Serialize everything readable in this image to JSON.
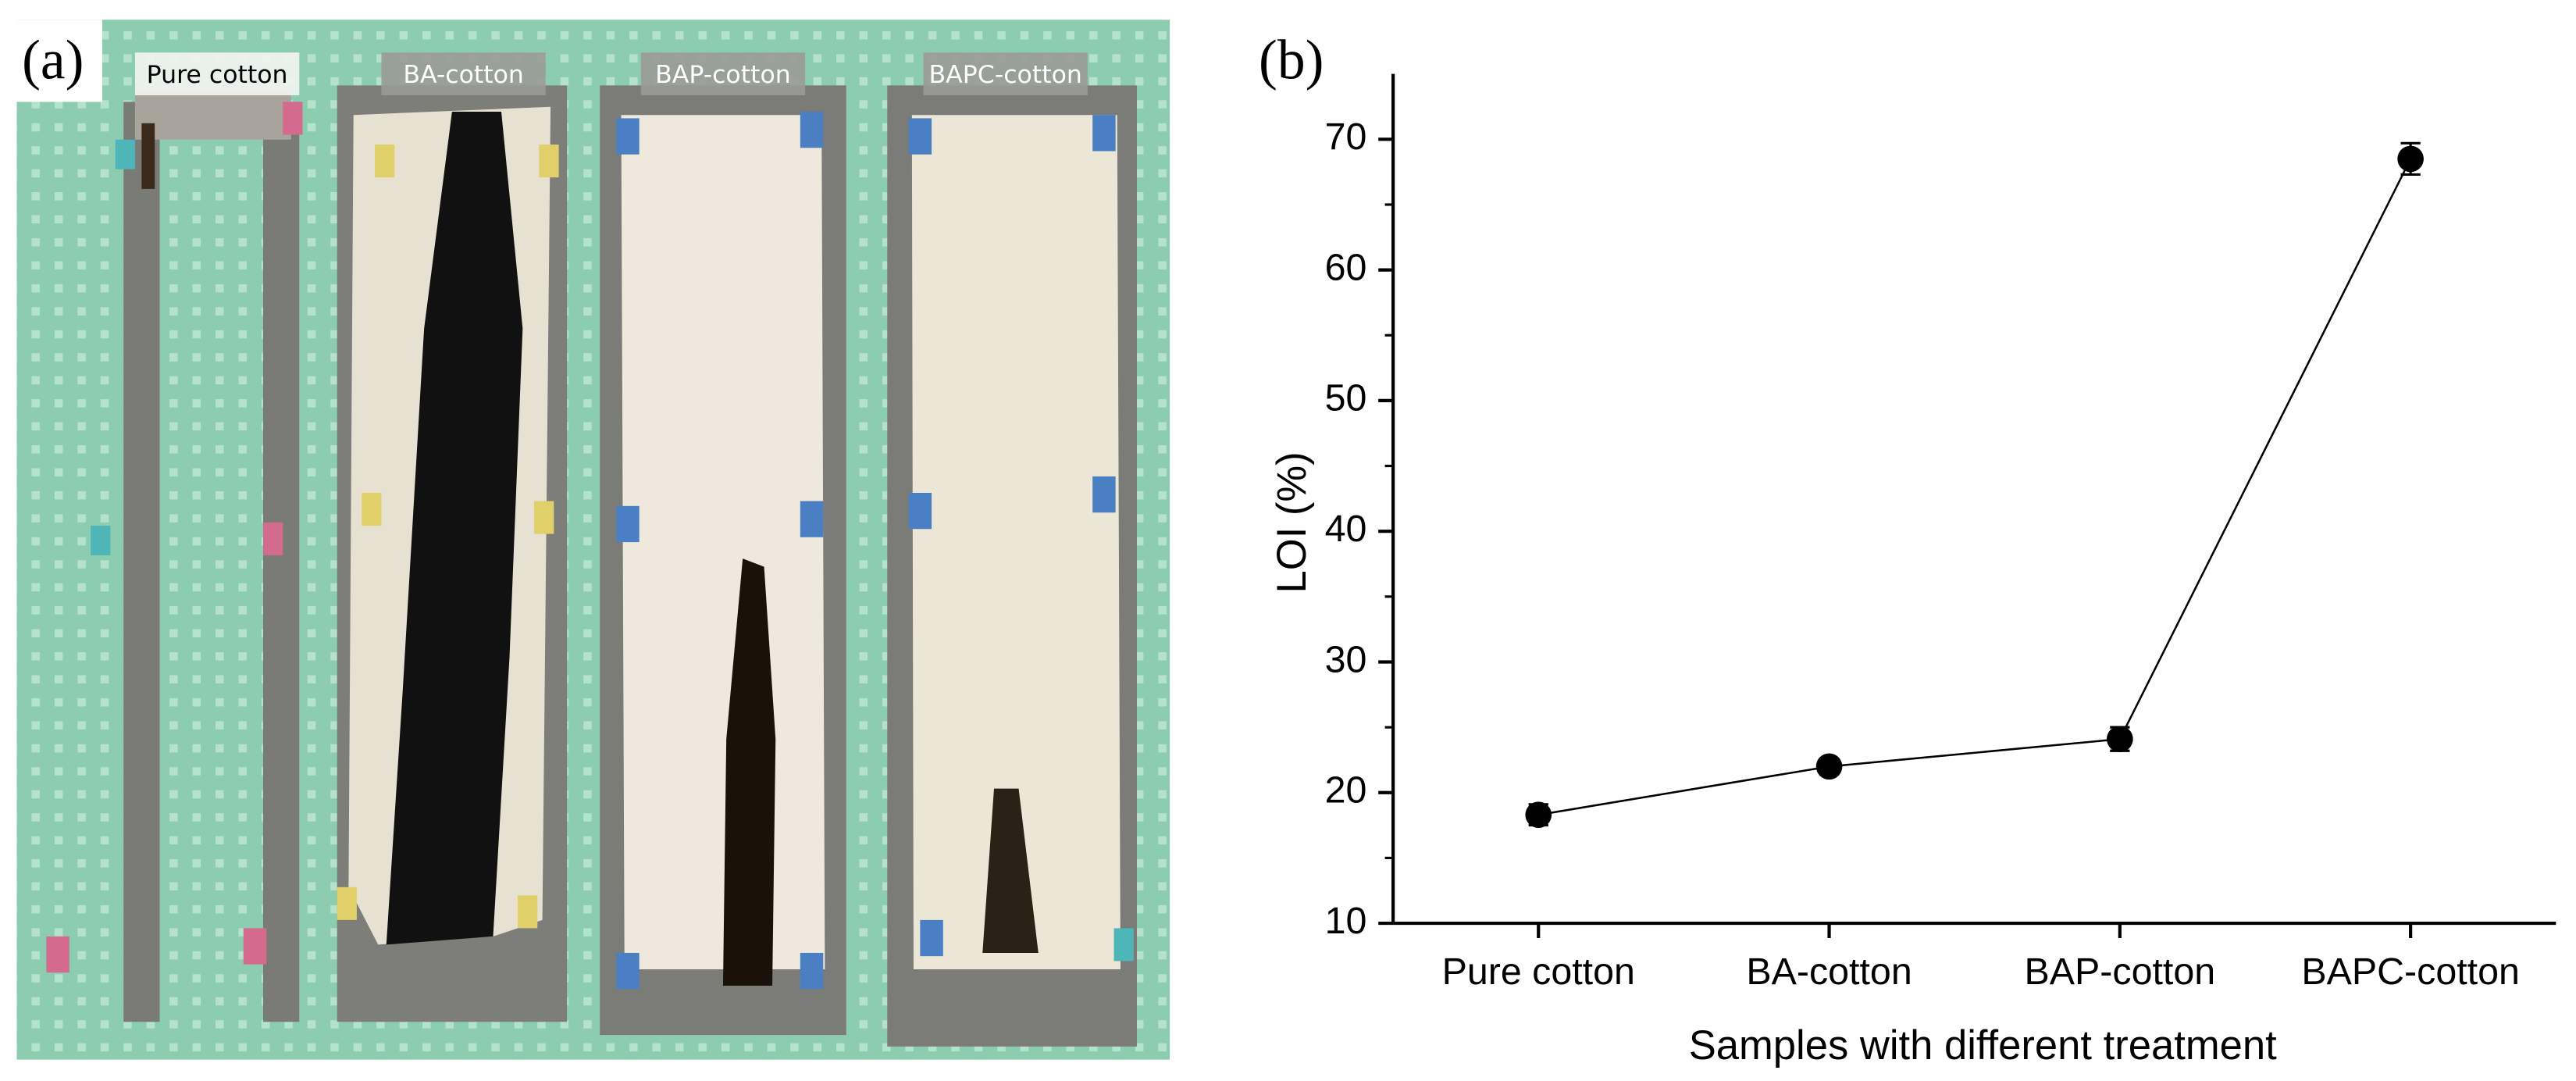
{
  "panel_a": {
    "label": "(a)",
    "strip_labels": [
      "Pure cotton",
      "BA-cotton",
      "BAP-cotton",
      "BAPC-cotton"
    ]
  },
  "chart_data": {
    "type": "line",
    "panel_label": "(b)",
    "x_label": "Samples with different treatment",
    "y_label": "LOI (%)",
    "categories": [
      "Pure cotton",
      "BA-cotton",
      "BAP-cotton",
      "BAPC-cotton"
    ],
    "series": [
      {
        "name": "LOI",
        "color": "#000000",
        "values": [
          18.3,
          22.0,
          24.1,
          68.5
        ],
        "errors": [
          0.8,
          0.6,
          0.9,
          1.2
        ]
      }
    ],
    "ylim": [
      10,
      75
    ],
    "yticks": [
      10,
      20,
      30,
      40,
      50,
      60,
      70
    ],
    "grid": false
  }
}
